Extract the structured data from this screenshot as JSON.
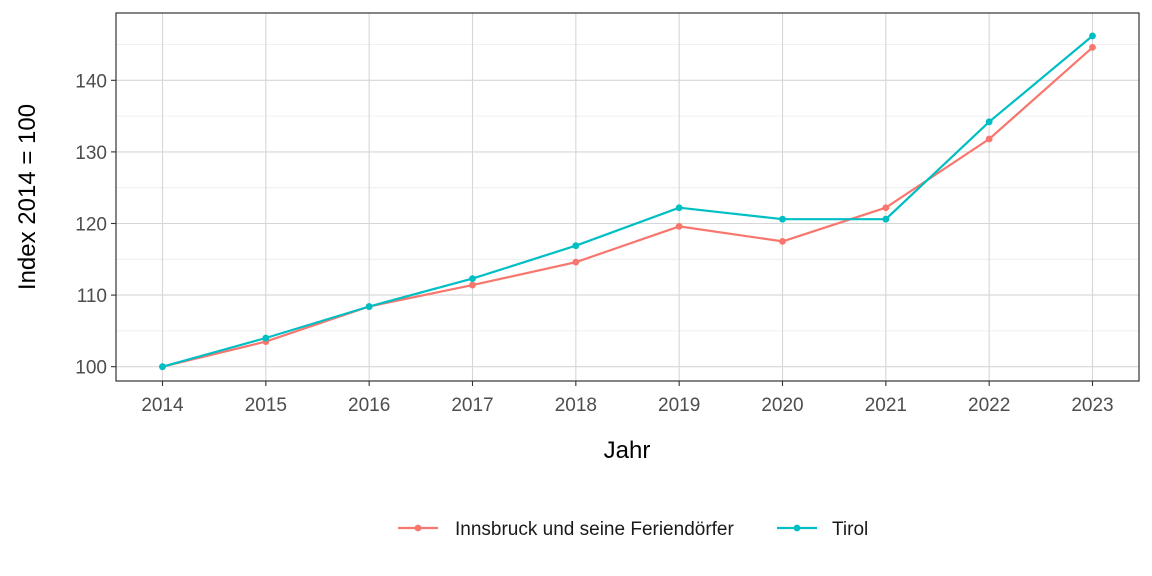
{
  "chart_data": {
    "type": "line",
    "title": "",
    "xlabel": "Jahr",
    "ylabel": "Index  2014  = 100",
    "x": [
      2014,
      2015,
      2016,
      2017,
      2018,
      2019,
      2020,
      2021,
      2022,
      2023
    ],
    "xlim": [
      2013.55,
      2023.45
    ],
    "ylim": [
      98,
      149.4
    ],
    "yticks": [
      100,
      110,
      120,
      130,
      140
    ],
    "grid": true,
    "legend_position": "bottom",
    "series": [
      {
        "name": "Innsbruck und seine Feriendörfer",
        "color": "#F8766D",
        "values": [
          100,
          103.5,
          108.4,
          111.4,
          114.6,
          119.6,
          117.5,
          122.2,
          131.8,
          144.6
        ]
      },
      {
        "name": "Tirol",
        "color": "#00BFC4",
        "values": [
          100,
          104.0,
          108.4,
          112.3,
          116.9,
          122.2,
          120.6,
          120.6,
          134.2,
          146.2
        ]
      }
    ]
  }
}
